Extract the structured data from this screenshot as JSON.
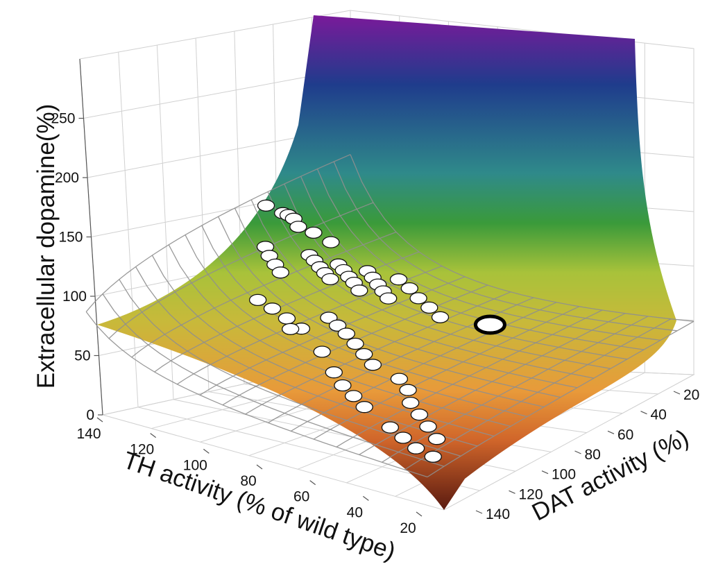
{
  "chart_data": {
    "type": "surface",
    "zlabel": "Extracellular dopamine(%)",
    "xlabel": "TH activity (% of wild type)",
    "ylabel": "DAT activity (%)",
    "z_ticks": [
      "0",
      "50",
      "100",
      "150",
      "200",
      "250"
    ],
    "x_ticks": [
      "140",
      "120",
      "100",
      "80",
      "60",
      "40",
      "20"
    ],
    "y_ticks": [
      "20",
      "40",
      "60",
      "80",
      "100",
      "120",
      "140"
    ],
    "zlim": [
      0,
      300
    ],
    "grid": true,
    "colormap": [
      "#5a1a10",
      "#d0652a",
      "#ef9a3a",
      "#c8b93a",
      "#a8c23a",
      "#3a9a3a",
      "#3a8a8a",
      "#2a3a8a",
      "#7a1a9a"
    ],
    "points": [
      {
        "th": 95,
        "dat": 23,
        "dopamine": 210
      },
      {
        "th": 99,
        "dat": 26,
        "dopamine": 200
      },
      {
        "th": 103,
        "dat": 25,
        "dopamine": 195
      },
      {
        "th": 107,
        "dat": 24,
        "dopamine": 188
      },
      {
        "th": 112,
        "dat": 22,
        "dopamine": 175
      },
      {
        "th": 118,
        "dat": 23,
        "dopamine": 165
      },
      {
        "th": 125,
        "dat": 24,
        "dopamine": 150
      },
      {
        "th": 85,
        "dat": 30,
        "dopamine": 170
      },
      {
        "th": 80,
        "dat": 35,
        "dopamine": 165
      },
      {
        "th": 76,
        "dat": 40,
        "dopamine": 160
      },
      {
        "th": 73,
        "dat": 44,
        "dopamine": 155
      },
      {
        "th": 98,
        "dat": 36,
        "dopamine": 155
      },
      {
        "th": 95,
        "dat": 40,
        "dopamine": 152
      },
      {
        "th": 92,
        "dat": 44,
        "dopamine": 148
      },
      {
        "th": 89,
        "dat": 48,
        "dopamine": 145
      },
      {
        "th": 86,
        "dat": 52,
        "dopamine": 142
      },
      {
        "th": 101,
        "dat": 44,
        "dopamine": 145
      },
      {
        "th": 98,
        "dat": 48,
        "dopamine": 142
      },
      {
        "th": 95,
        "dat": 52,
        "dopamine": 138
      },
      {
        "th": 92,
        "dat": 56,
        "dopamine": 135
      },
      {
        "th": 89,
        "dat": 60,
        "dopamine": 130
      },
      {
        "th": 104,
        "dat": 52,
        "dopamine": 138
      },
      {
        "th": 101,
        "dat": 56,
        "dopamine": 134
      },
      {
        "th": 98,
        "dat": 60,
        "dopamine": 130
      },
      {
        "th": 95,
        "dat": 64,
        "dopamine": 126
      },
      {
        "th": 92,
        "dat": 68,
        "dopamine": 122
      },
      {
        "th": 108,
        "dat": 60,
        "dopamine": 128
      },
      {
        "th": 105,
        "dat": 66,
        "dopamine": 122
      },
      {
        "th": 101,
        "dat": 72,
        "dopamine": 116
      },
      {
        "th": 98,
        "dat": 78,
        "dopamine": 110
      },
      {
        "th": 95,
        "dat": 84,
        "dopamine": 104
      },
      {
        "th": 97,
        "dat": 100,
        "dopamine": 100,
        "highlight": true
      },
      {
        "th": 62,
        "dat": 44,
        "dopamine": 130
      },
      {
        "th": 58,
        "dat": 52,
        "dopamine": 128
      },
      {
        "th": 54,
        "dat": 60,
        "dopamine": 125
      },
      {
        "th": 50,
        "dat": 68,
        "dopamine": 122
      },
      {
        "th": 66,
        "dat": 66,
        "dopamine": 120
      },
      {
        "th": 62,
        "dat": 72,
        "dopamine": 118
      },
      {
        "th": 58,
        "dat": 78,
        "dopamine": 116
      },
      {
        "th": 54,
        "dat": 84,
        "dopamine": 112
      },
      {
        "th": 50,
        "dat": 90,
        "dopamine": 108
      },
      {
        "th": 46,
        "dat": 96,
        "dopamine": 104
      },
      {
        "th": 42,
        "dat": 70,
        "dopamine": 130
      },
      {
        "th": 38,
        "dat": 84,
        "dopamine": 118
      },
      {
        "th": 45,
        "dat": 106,
        "dopamine": 96
      },
      {
        "th": 41,
        "dat": 112,
        "dopamine": 92
      },
      {
        "th": 30,
        "dat": 94,
        "dopamine": 110
      },
      {
        "th": 26,
        "dat": 100,
        "dopamine": 104
      },
      {
        "th": 23,
        "dat": 106,
        "dopamine": 100
      },
      {
        "th": 20,
        "dat": 112,
        "dopamine": 96
      },
      {
        "th": 34,
        "dat": 118,
        "dopamine": 90
      },
      {
        "th": 30,
        "dat": 124,
        "dopamine": 86
      },
      {
        "th": 26,
        "dat": 130,
        "dopamine": 82
      },
      {
        "th": 22,
        "dat": 136,
        "dopamine": 78
      },
      {
        "th": 16,
        "dat": 124,
        "dopamine": 88
      },
      {
        "th": 14,
        "dat": 130,
        "dopamine": 84
      },
      {
        "th": 12,
        "dat": 136,
        "dopamine": 80
      },
      {
        "th": 12,
        "dat": 142,
        "dopamine": 76
      }
    ]
  }
}
